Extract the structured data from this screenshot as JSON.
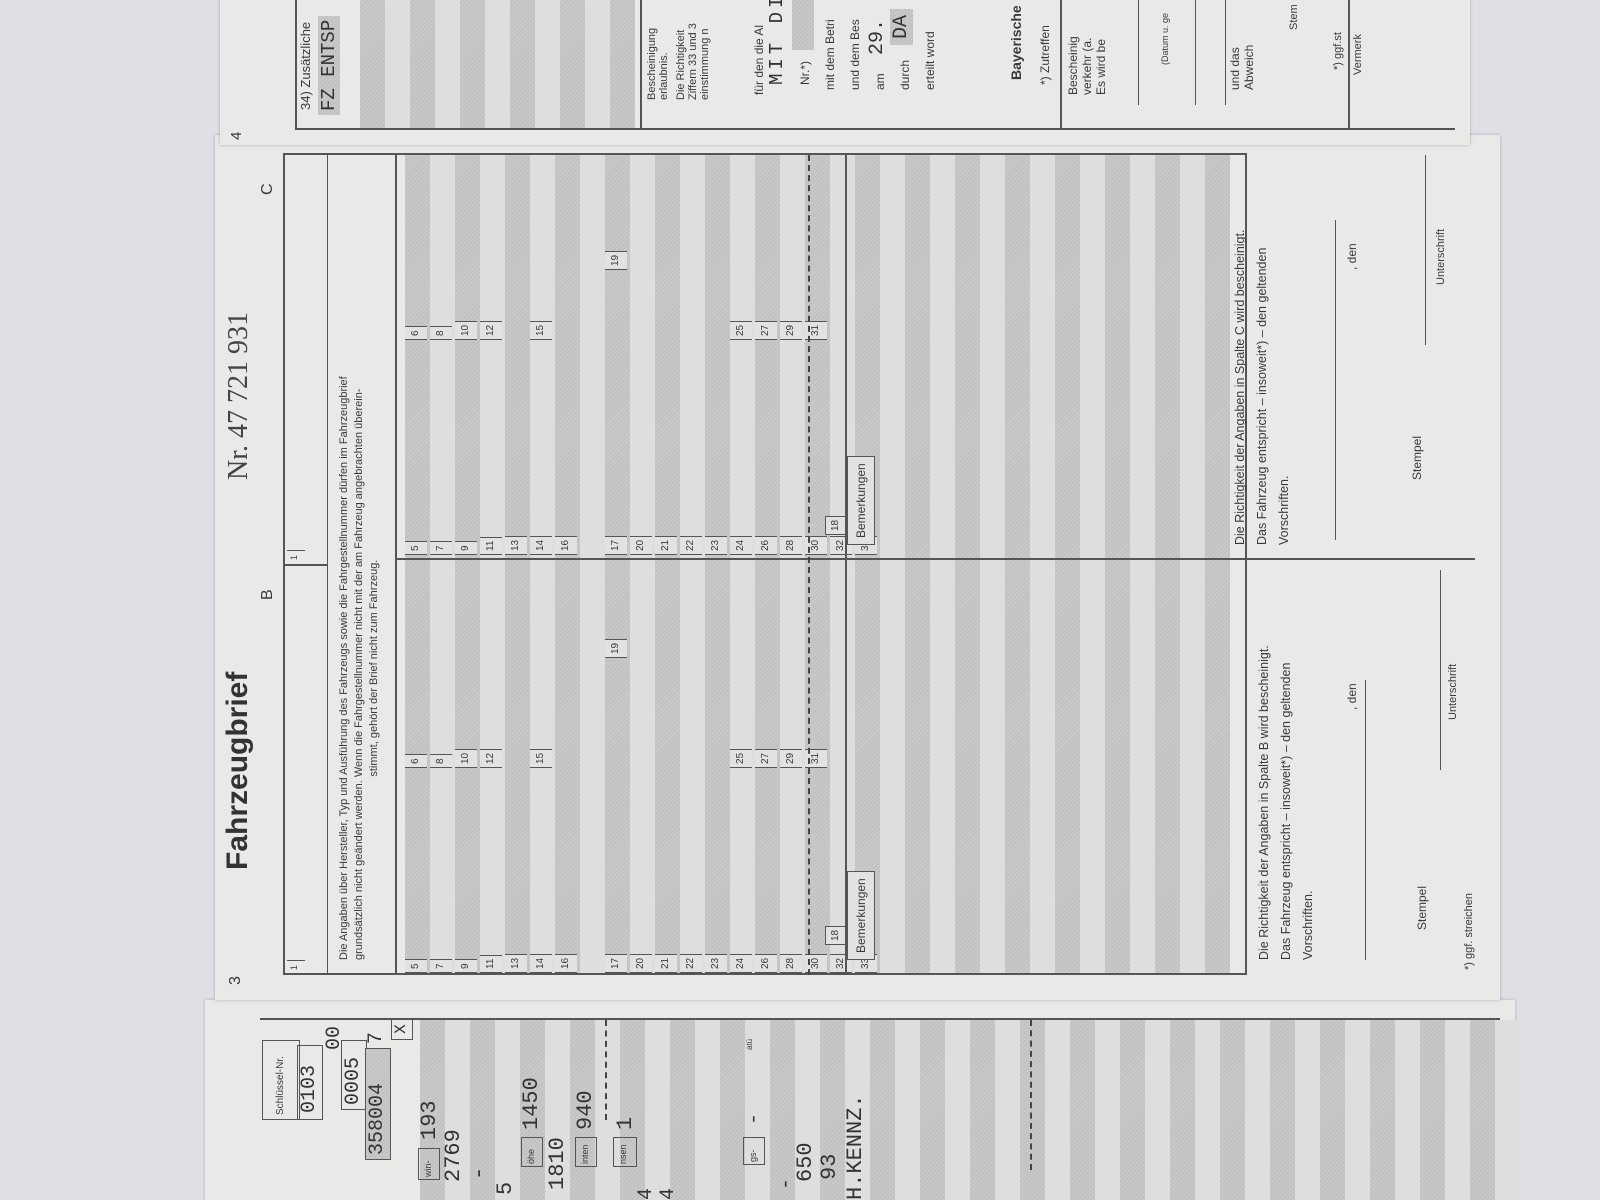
{
  "left_page": {
    "key_label": "Schlüssel-Nr.",
    "key_values": [
      "0103",
      "00",
      "0005",
      "358004",
      "7",
      "X"
    ],
    "values": [
      "193",
      "2769",
      "-",
      "5",
      "1450",
      "1810",
      "940",
      "1",
      "4",
      "4",
      "-",
      "-",
      "650",
      "93",
      "H.KENNZ."
    ],
    "labels": [
      "win-",
      "öhe",
      "inten",
      "nsen",
      "gs-",
      "atü"
    ]
  },
  "main_page": {
    "page_number": "3",
    "title": "Fahrzeugbrief",
    "serial": "Nr. 47 721 931",
    "col_b": "B",
    "col_c": "C",
    "field_1": "1",
    "notice": [
      "Die Angaben über Hersteller, Typ und Ausführung des Fahrzeugs sowie die Fahrgestellnummer dürfen im Fahrzeugbrief",
      "grundsätzlich nicht geändert werden. Wenn die Fahrgestellnummer nicht mit der am Fahrzeug angebrachten überein-",
      "stimmt, gehört der Brief nicht zum Fahrzeug."
    ],
    "rows": [
      {
        "n": "5",
        "m": "6"
      },
      {
        "n": "7",
        "m": "8"
      },
      {
        "n": "9",
        "m": "10"
      },
      {
        "n": "11",
        "m": "12"
      },
      {
        "n": "13",
        "m": ""
      },
      {
        "n": "14",
        "m": "15"
      },
      {
        "n": "16",
        "m": ""
      },
      {
        "n": "",
        "m": ""
      },
      {
        "n": "17",
        "m": "19"
      },
      {
        "n": "20",
        "m": ""
      },
      {
        "n": "21",
        "m": ""
      },
      {
        "n": "22",
        "m": ""
      },
      {
        "n": "23",
        "m": ""
      },
      {
        "n": "24",
        "m": "25"
      },
      {
        "n": "26",
        "m": "27"
      },
      {
        "n": "28",
        "m": "29"
      },
      {
        "n": "30",
        "m": "31"
      },
      {
        "n": "32",
        "m": ""
      },
      {
        "n": "33",
        "m": ""
      }
    ],
    "field_18": "18",
    "remarks_label": "Bemerkungen",
    "cert_b": [
      "Die Richtigkeit der Angaben in Spalte B wird bescheinigt.",
      "Das Fahrzeug entspricht – insoweit*) – den geltenden",
      "Vorschriften."
    ],
    "cert_c": [
      "Die Richtigkeit der Angaben in Spalte C wird bescheinigt.",
      "Das Fahrzeug entspricht – insoweit*) – den geltenden",
      "Vorschriften."
    ],
    "den": ", den",
    "stamp": "Stempel",
    "signature": "Unterschrift",
    "footnote": "*) ggf. streichen"
  },
  "right_page": {
    "page_number": "4",
    "field_34": "34) Zusätzliche",
    "field_34_value": "FZ ENTSP",
    "cert_title": [
      "Bescheinigung",
      "erlaubnis."
    ],
    "cert_text": [
      "Die Richtigkeit",
      "Ziffern 33 und 3",
      "einstimmung n"
    ],
    "for_label": "für den die Al",
    "for_value": "MIT DI",
    "nr_label": "Nr.*)",
    "with_label": "mit dem Betri",
    "and_label": "und dem Bes",
    "am_label": "am",
    "am_value": "29.",
    "by_label": "durch",
    "by_value": "DA",
    "issued_label": "erteilt word",
    "authority": "Bayerische",
    "applicable": "*) Zutreffen",
    "cert2": [
      "Bescheinig",
      "verkehr (a.",
      "Es wird be"
    ],
    "date_label": "(Datum u. ge",
    "deviation": [
      "und das",
      "Abweich"
    ],
    "stamp": "Stem",
    "strike": "*) ggf.st",
    "note": "Vermerk"
  }
}
